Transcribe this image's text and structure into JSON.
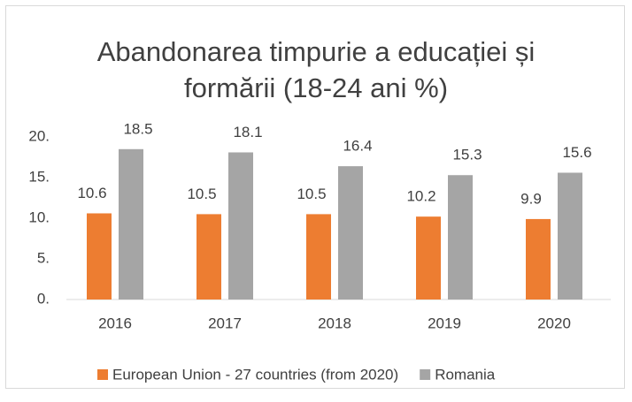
{
  "chart_data": {
    "type": "bar",
    "title": "Abandonarea timpurie a educației și formării (18-24 ani %)",
    "categories": [
      "2016",
      "2017",
      "2018",
      "2019",
      "2020"
    ],
    "series": [
      {
        "name": "European Union - 27 countries (from 2020)",
        "color": "#ed7d31",
        "values": [
          10.6,
          10.5,
          10.5,
          10.2,
          9.9
        ]
      },
      {
        "name": "Romania",
        "color": "#a5a5a5",
        "values": [
          18.5,
          18.1,
          16.4,
          15.3,
          15.6
        ]
      }
    ],
    "ylim": [
      0,
      20
    ],
    "yticks": [
      {
        "value": 0,
        "label": "0."
      },
      {
        "value": 5,
        "label": "5."
      },
      {
        "value": 10,
        "label": "10."
      },
      {
        "value": 15,
        "label": "15."
      },
      {
        "value": 20,
        "label": "20."
      }
    ],
    "grid": false,
    "legend": "bottom"
  }
}
